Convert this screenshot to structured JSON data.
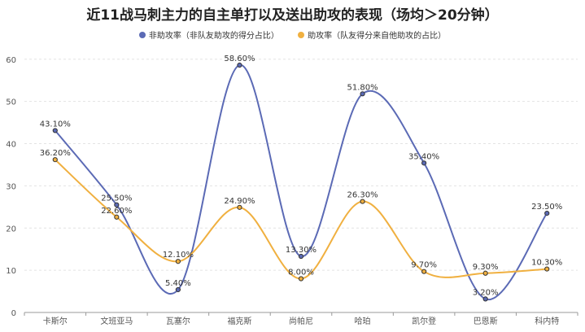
{
  "chart_data": {
    "type": "line",
    "title": "近11战马刺主力的自主单打以及送出助攻的表现（场均＞20分钟）",
    "categories": [
      "卡斯尔",
      "文班亚马",
      "瓦塞尔",
      "福克斯",
      "尚帕尼",
      "哈珀",
      "凯尔登",
      "巴恩斯",
      "科内特"
    ],
    "series": [
      {
        "name": "非助攻率（非队友助攻的得分占比）",
        "color": "#5b6ab5",
        "values": [
          43.1,
          25.5,
          5.4,
          58.6,
          13.3,
          51.8,
          35.4,
          3.2,
          23.5
        ],
        "labels": [
          "43.10%",
          "25.50%",
          "5.40%",
          "58.60%",
          "13.30%",
          "51.80%",
          "35.40%",
          "3.20%",
          "23.50%"
        ]
      },
      {
        "name": "助攻率（队友得分来自他助攻的占比）",
        "color": "#f0b040",
        "values": [
          36.2,
          22.6,
          12.1,
          24.9,
          8.0,
          26.3,
          9.7,
          9.3,
          10.3
        ],
        "labels": [
          "36.20%",
          "22.60%",
          "12.10%",
          "24.90%",
          "8.00%",
          "26.30%",
          "9.70%",
          "9.30%",
          "10.30%"
        ]
      }
    ],
    "yticks": [
      "0",
      "10",
      "20",
      "30",
      "40",
      "50",
      "60"
    ],
    "ylim": [
      0,
      60
    ],
    "grid": true,
    "legend_position": "top-center"
  }
}
